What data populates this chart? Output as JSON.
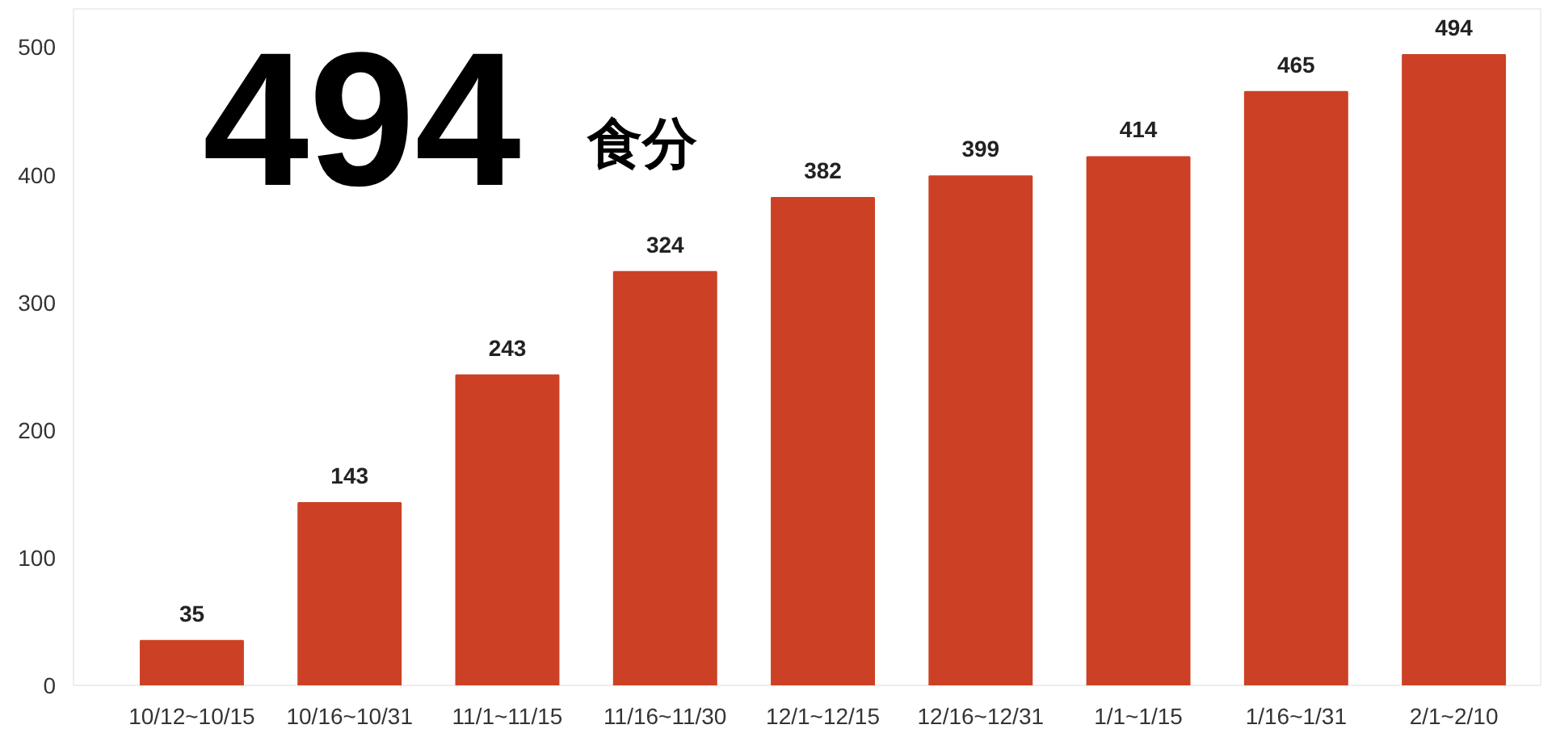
{
  "chart_data": {
    "type": "bar",
    "title": "494",
    "subtitle": "食分",
    "categories": [
      "10/12~10/15",
      "10/16~10/31",
      "11/1~11/15",
      "11/16~11/30",
      "12/1~12/15",
      "12/16~12/31",
      "1/1~1/15",
      "1/16~1/31",
      "2/1~2/10"
    ],
    "values": [
      35,
      143,
      243,
      324,
      382,
      399,
      414,
      465,
      494
    ],
    "color": "#cc4125",
    "ylim": [
      0,
      530
    ],
    "yticks": [
      0,
      100,
      200,
      300,
      400,
      500
    ],
    "grid": false,
    "data_labels": true
  }
}
